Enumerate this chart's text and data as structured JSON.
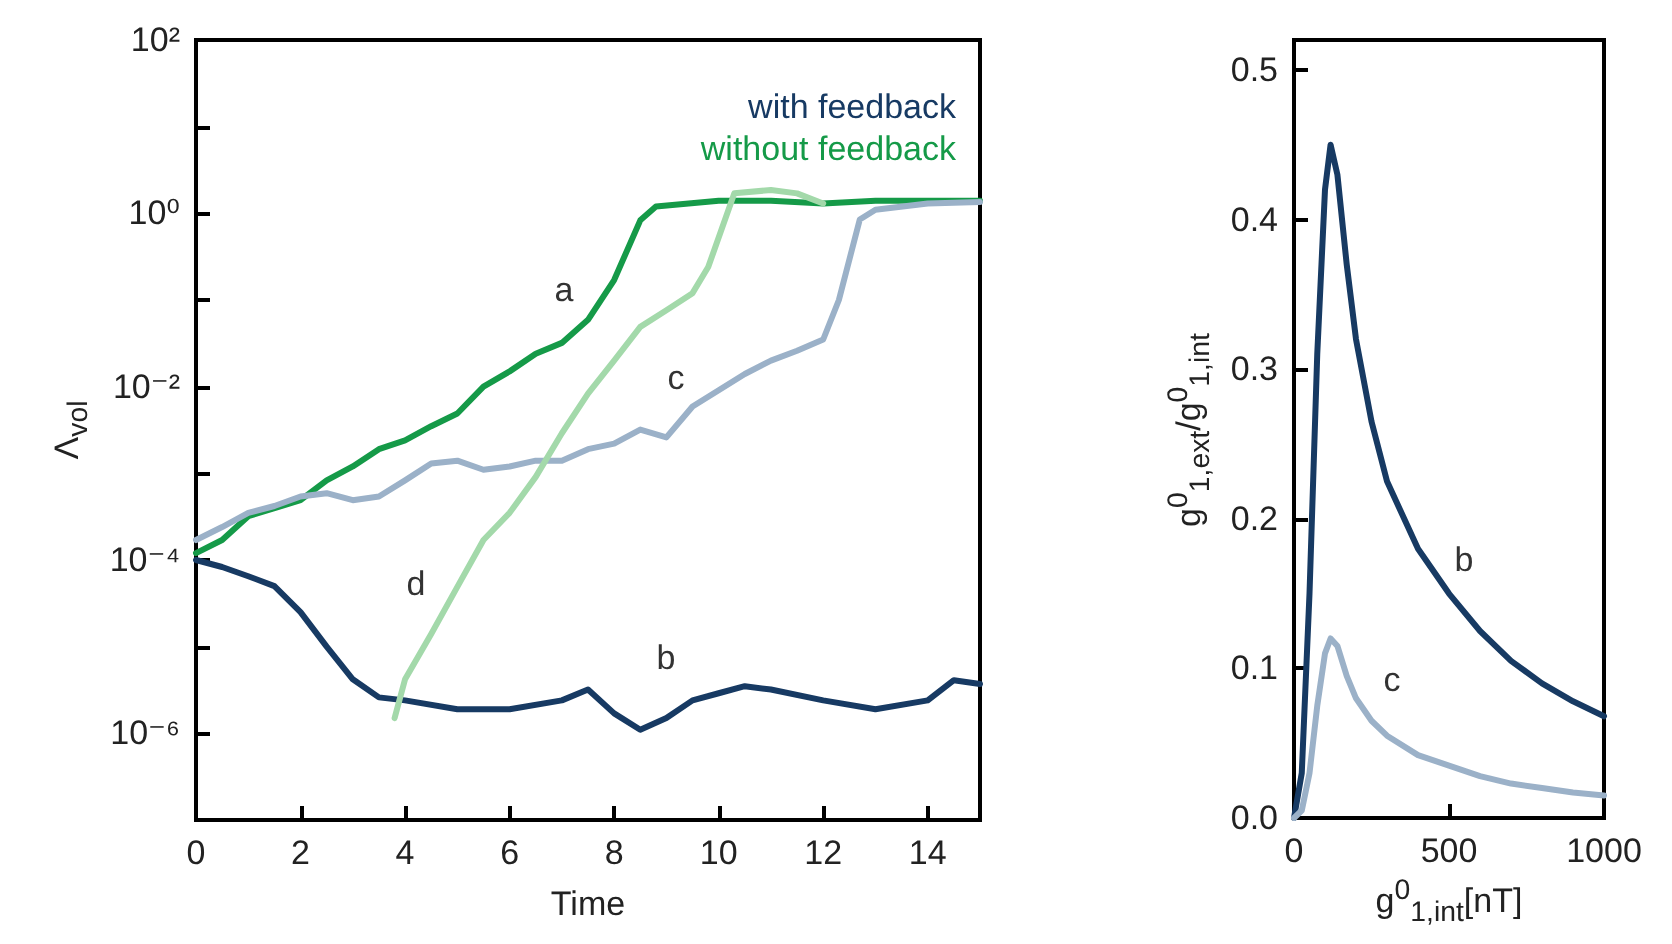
{
  "chart_data": [
    {
      "type": "line",
      "xlabel": "Time",
      "ylabel": "Λ$_{vol}$",
      "log": "y",
      "legend": "top right",
      "grid": false,
      "marker": "none",
      "line_style": "solid",
      "xlim": [
        0,
        15
      ],
      "xticks": [
        0,
        2,
        4,
        6,
        8,
        10,
        12,
        14
      ],
      "ylim": [
        1e-07,
        100
      ],
      "yticks": [
        {
          "value": 1e-07,
          "label": null
        },
        {
          "value": 1e-06,
          "label": "10⁻⁶"
        },
        {
          "value": 1e-05,
          "label": null
        },
        {
          "value": 0.0001,
          "label": "10⁻⁴"
        },
        {
          "value": 0.001,
          "label": null
        },
        {
          "value": 0.01,
          "label": "10⁻²"
        },
        {
          "value": 0.1,
          "label": null
        },
        {
          "value": 1,
          "label": "10⁰"
        },
        {
          "value": 10,
          "label": null
        },
        {
          "value": 100,
          "label": "10²"
        }
      ],
      "series": [
        {
          "name": "with feedback",
          "color": "#173a63",
          "x": [
            0,
            0.5,
            1,
            1.5,
            2,
            2.5,
            3,
            3.5,
            4,
            5,
            6,
            7,
            7.5,
            8,
            8.5,
            9,
            9.5,
            10,
            10.5,
            11,
            12,
            13,
            14,
            14.5,
            15
          ],
          "values": [
            0.0001,
            8.3e-05,
            6.5e-05,
            5e-05,
            2.5e-05,
            1e-05,
            4.2e-06,
            2.6e-06,
            2.4e-06,
            1.9e-06,
            1.9e-06,
            2.4e-06,
            3.2e-06,
            1.7e-06,
            1.1e-06,
            1.5e-06,
            2.4e-06,
            2.9e-06,
            3.5e-06,
            3.2e-06,
            2.4e-06,
            1.9e-06,
            2.4e-06,
            4.1e-06,
            3.7e-06
          ]
        },
        {
          "name": "without feedback",
          "color": "#159a48",
          "x": [
            0,
            0.5,
            1,
            2,
            2.5,
            3,
            3.5,
            4,
            4.5,
            5,
            5.5,
            6,
            6.5,
            7,
            7.5,
            8,
            8.5,
            8.8,
            10,
            11,
            12,
            13,
            14,
            15
          ],
          "values": [
            0.00012,
            0.00017,
            0.00032,
            0.00049,
            0.00083,
            0.0012,
            0.0019,
            0.0024,
            0.0035,
            0.0049,
            0.01,
            0.015,
            0.024,
            0.032,
            0.059,
            0.17,
            0.83,
            1.2,
            1.4,
            1.4,
            1.3,
            1.4,
            1.4,
            1.4
          ]
        },
        {
          "color": "#9bb1c8",
          "x": [
            0,
            0.5,
            1,
            1.5,
            2,
            2.5,
            3,
            3.5,
            4,
            4.5,
            5,
            5.5,
            6,
            6.5,
            7,
            7.5,
            8,
            8.5,
            9,
            9.5,
            10,
            10.5,
            11,
            11.5,
            12,
            12.3,
            12.7,
            13,
            14,
            15
          ],
          "values": [
            0.00017,
            0.00024,
            0.00035,
            0.00042,
            0.00054,
            0.00059,
            0.00049,
            0.00054,
            0.00083,
            0.0013,
            0.0014,
            0.0011,
            0.0012,
            0.0014,
            0.0014,
            0.0019,
            0.0022,
            0.0032,
            0.0026,
            0.0059,
            0.0091,
            0.014,
            0.02,
            0.026,
            0.035,
            0.1,
            0.85,
            1.1,
            1.3,
            1.35
          ]
        },
        {
          "color": "#a3d9aa",
          "x": [
            3.8,
            4,
            4.5,
            5,
            5.5,
            6,
            6.5,
            7,
            7.5,
            8,
            8.5,
            9,
            9.5,
            9.8,
            10.3,
            11,
            11.5,
            12
          ],
          "values": [
            1.5e-06,
            4.2e-06,
            1.4e-05,
            4.9e-05,
            0.00017,
            0.00035,
            0.00091,
            0.0029,
            0.0083,
            0.02,
            0.049,
            0.076,
            0.12,
            0.24,
            1.7,
            1.86,
            1.7,
            1.3
          ]
        }
      ],
      "annotations": [
        "a",
        "b",
        "c",
        "d"
      ]
    },
    {
      "type": "line",
      "xlabel": "g$^{0}$$_{1,int}$[nT]",
      "ylabel": "g$^{0}$$_{1,ext}$/g$^{0}$$_{1,int}$",
      "grid": false,
      "marker": "none",
      "line_style": "solid",
      "xlim": [
        0,
        1000
      ],
      "xticks": [
        0,
        500,
        1000
      ],
      "ylim": [
        0,
        0.52
      ],
      "yticks": [
        {
          "value": 0,
          "label": "0.0"
        },
        0.1,
        0.2,
        0.3,
        0.4,
        0.5
      ],
      "series": [
        {
          "color": "#173a63",
          "x": [
            0,
            25,
            50,
            75,
            100,
            118,
            140,
            170,
            200,
            250,
            300,
            400,
            500,
            600,
            700,
            800,
            900,
            1000
          ],
          "values": [
            0,
            0.03,
            0.15,
            0.31,
            0.42,
            0.45,
            0.43,
            0.37,
            0.32,
            0.265,
            0.225,
            0.18,
            0.15,
            0.125,
            0.105,
            0.09,
            0.078,
            0.068
          ]
        },
        {
          "color": "#9bb1c8",
          "x": [
            0,
            25,
            50,
            75,
            100,
            118,
            140,
            170,
            200,
            250,
            300,
            400,
            500,
            600,
            700,
            800,
            900,
            1000
          ],
          "values": [
            0,
            0.005,
            0.03,
            0.075,
            0.11,
            0.12,
            0.115,
            0.095,
            0.08,
            0.065,
            0.055,
            0.042,
            0.035,
            0.028,
            0.023,
            0.02,
            0.017,
            0.015
          ]
        }
      ],
      "annotations": [
        "b",
        "c"
      ]
    }
  ]
}
